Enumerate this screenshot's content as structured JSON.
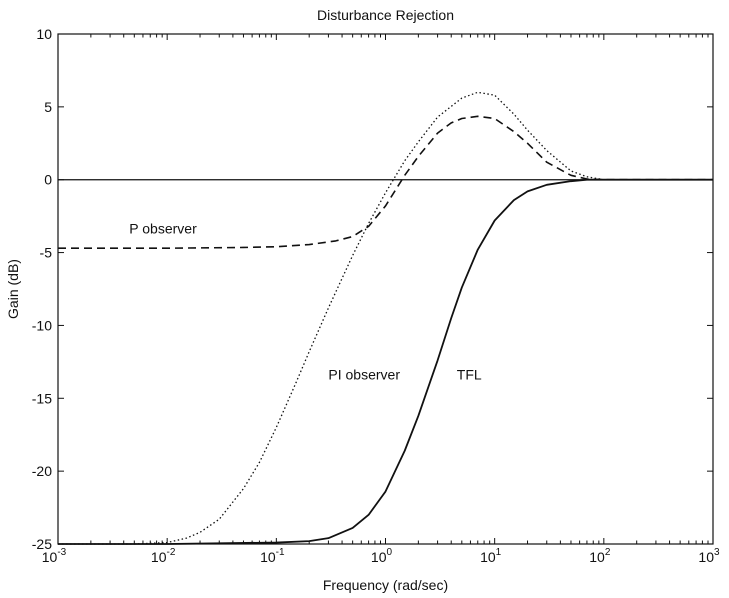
{
  "chart_data": {
    "type": "line",
    "title": "Disturbance Rejection",
    "xlabel": "Frequency (rad/sec)",
    "ylabel": "Gain (dB)",
    "xscale": "log",
    "xlim": [
      0.001,
      1000
    ],
    "ylim": [
      -25,
      10
    ],
    "grid": false,
    "legend": "none",
    "x_ticks": [
      {
        "value": 0.001,
        "base": "10",
        "exp": "-3"
      },
      {
        "value": 0.01,
        "base": "10",
        "exp": "-2"
      },
      {
        "value": 0.1,
        "base": "10",
        "exp": "-1"
      },
      {
        "value": 1,
        "base": "10",
        "exp": "0"
      },
      {
        "value": 10,
        "base": "10",
        "exp": "1"
      },
      {
        "value": 100,
        "base": "10",
        "exp": "2"
      },
      {
        "value": 1000,
        "base": "10",
        "exp": "3"
      }
    ],
    "y_ticks": [
      {
        "value": 10,
        "label": "10"
      },
      {
        "value": 5,
        "label": "5"
      },
      {
        "value": 0,
        "label": "0"
      },
      {
        "value": -5,
        "label": "-5"
      },
      {
        "value": -10,
        "label": "-10"
      },
      {
        "value": -15,
        "label": "-15"
      },
      {
        "value": -20,
        "label": "-20"
      },
      {
        "value": -25,
        "label": "-25"
      }
    ],
    "series": [
      {
        "key": "p_observer",
        "style": "dashed",
        "x": [
          0.001,
          0.01,
          0.05,
          0.1,
          0.2,
          0.35,
          0.5,
          0.7,
          1,
          1.5,
          2,
          3,
          4,
          5,
          7,
          10,
          15,
          20,
          30,
          50,
          70,
          100,
          300,
          1000
        ],
        "y": [
          -4.7,
          -4.7,
          -4.65,
          -4.6,
          -4.45,
          -4.2,
          -3.9,
          -3.2,
          -1.8,
          0.3,
          1.6,
          3.2,
          3.9,
          4.2,
          4.35,
          4.2,
          3.3,
          2.5,
          1.2,
          0.3,
          0.05,
          0,
          0,
          0
        ]
      },
      {
        "key": "pi_observer",
        "style": "dotted",
        "x": [
          0.001,
          0.005,
          0.01,
          0.015,
          0.02,
          0.03,
          0.05,
          0.07,
          0.1,
          0.15,
          0.2,
          0.3,
          0.5,
          0.7,
          1,
          1.5,
          2,
          3,
          5,
          7,
          10,
          15,
          20,
          30,
          50,
          70,
          100,
          300,
          1000
        ],
        "y": [
          -25,
          -25,
          -24.9,
          -24.6,
          -24.2,
          -23.3,
          -21.2,
          -19.4,
          -17.0,
          -14.0,
          -11.8,
          -8.8,
          -5.2,
          -3.0,
          -0.9,
          1.3,
          2.6,
          4.3,
          5.6,
          6.0,
          5.8,
          4.5,
          3.4,
          2.0,
          0.6,
          0.2,
          0,
          0,
          0
        ]
      },
      {
        "key": "tfl",
        "style": "solid",
        "x": [
          0.001,
          0.01,
          0.1,
          0.2,
          0.3,
          0.5,
          0.7,
          1,
          1.5,
          2,
          3,
          4,
          5,
          7,
          10,
          15,
          20,
          30,
          50,
          70,
          100,
          300,
          1000
        ],
        "y": [
          -25,
          -25,
          -24.9,
          -24.8,
          -24.6,
          -23.9,
          -23.0,
          -21.4,
          -18.6,
          -16.2,
          -12.4,
          -9.5,
          -7.4,
          -4.8,
          -2.8,
          -1.4,
          -0.8,
          -0.35,
          -0.1,
          0,
          0,
          0,
          0
        ]
      }
    ],
    "annotations": [
      {
        "text": "P observer",
        "x": 0.0045,
        "y": -3.7
      },
      {
        "text": "PI observer",
        "x": 0.3,
        "y": -13.7
      },
      {
        "text": "TFL",
        "x": 4.5,
        "y": -13.7
      }
    ]
  }
}
